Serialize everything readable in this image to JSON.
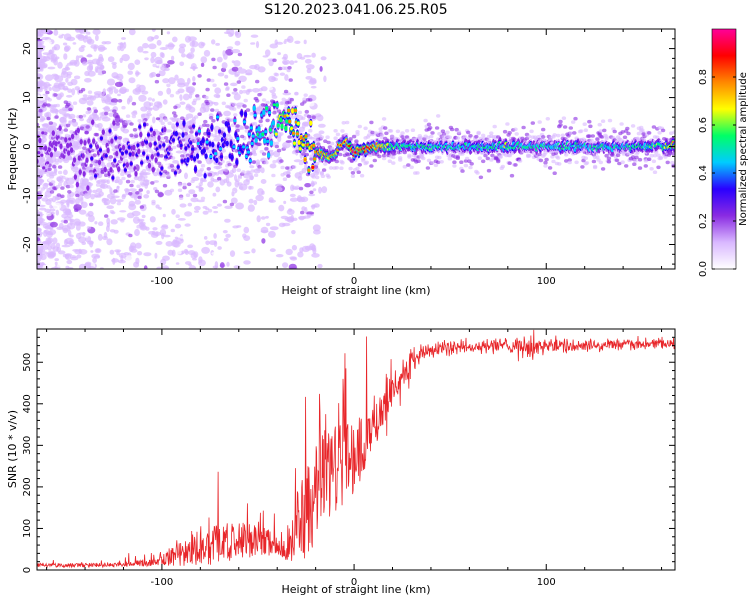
{
  "title": "S120.2023.041.06.25.R05",
  "colors": {
    "axis": "#000000",
    "snr_line": "#e8262a",
    "background": "#ffffff",
    "colormap": [
      "#ffffff",
      "#d9b8ff",
      "#8a2be2",
      "#2a00ff",
      "#00ccff",
      "#00ff66",
      "#ffff00",
      "#ff8800",
      "#ff0000",
      "#ff0099"
    ]
  },
  "chart_data": [
    {
      "type": "heatmap",
      "name": "spectrogram",
      "xlabel": "Height of straight line (km)",
      "ylabel": "Frequency (Hz)",
      "xlim": [
        -165,
        167
      ],
      "ylim": [
        -25,
        24
      ],
      "xticks": [
        -100,
        0,
        100
      ],
      "xtick_labels": [
        "-100",
        "0",
        "100"
      ],
      "yticks": [
        -20,
        -10,
        0,
        10,
        20
      ],
      "ytick_labels": [
        "-20",
        "-10",
        "0",
        "10",
        "20"
      ],
      "grid": false,
      "ridge": {
        "x": [
          -165,
          -140,
          -120,
          -100,
          -80,
          -60,
          -50,
          -40,
          -36,
          -30,
          -25,
          -20,
          -15,
          -10,
          -8,
          -5,
          -2,
          0,
          10,
          20,
          40,
          60,
          80,
          100,
          120,
          140,
          160,
          167
        ],
        "freq": [
          0,
          -2,
          -1,
          0,
          0,
          2,
          3,
          5,
          6,
          3,
          0,
          -1,
          -2,
          -2,
          0,
          1,
          0,
          -1,
          0,
          0,
          0,
          0,
          0,
          0,
          0,
          0,
          0,
          0
        ],
        "amplitude": [
          0.2,
          0.25,
          0.3,
          0.3,
          0.35,
          0.4,
          0.45,
          0.55,
          0.65,
          0.7,
          0.75,
          0.75,
          0.7,
          0.7,
          0.75,
          0.8,
          0.85,
          0.88,
          0.85,
          0.55,
          0.5,
          0.5,
          0.55,
          0.5,
          0.5,
          0.5,
          0.55,
          0.7
        ]
      },
      "colorbar": {
        "label": "Normalized spectral amplitude",
        "range": [
          0,
          1
        ],
        "ticks": [
          0.0,
          0.2,
          0.4,
          0.6,
          0.8
        ],
        "tick_labels": [
          "0.0",
          "0.2",
          "0.4",
          "0.6",
          "0.8"
        ]
      }
    },
    {
      "type": "line",
      "name": "snr",
      "xlabel": "Height of straight line (km)",
      "ylabel": "SNR (10 * v/v)",
      "xlim": [
        -165,
        167
      ],
      "ylim": [
        0,
        580
      ],
      "xticks": [
        -100,
        0,
        100
      ],
      "xtick_labels": [
        "-100",
        "0",
        "100"
      ],
      "yticks": [
        0,
        100,
        200,
        300,
        400,
        500
      ],
      "ytick_labels": [
        "0",
        "100",
        "200",
        "300",
        "400",
        "500"
      ],
      "grid": false,
      "envelope": {
        "x": [
          -165,
          -140,
          -120,
          -105,
          -100,
          -95,
          -90,
          -80,
          -70,
          -60,
          -50,
          -45,
          -40,
          -35,
          -32,
          -30,
          -25,
          -20,
          -15,
          -10,
          -5,
          0,
          5,
          10,
          15,
          20,
          25,
          30,
          35,
          40,
          50,
          60,
          80,
          90,
          100,
          120,
          140,
          167
        ],
        "baseline": [
          12,
          12,
          14,
          20,
          30,
          35,
          40,
          60,
          70,
          75,
          75,
          70,
          60,
          60,
          80,
          120,
          150,
          190,
          220,
          250,
          270,
          280,
          310,
          340,
          390,
          430,
          470,
          500,
          520,
          530,
          535,
          535,
          540,
          540,
          540,
          540,
          545,
          545
        ],
        "fluctuation": [
          6,
          6,
          8,
          12,
          20,
          30,
          40,
          60,
          60,
          55,
          50,
          45,
          40,
          50,
          70,
          90,
          150,
          160,
          150,
          140,
          120,
          110,
          90,
          70,
          50,
          40,
          25,
          18,
          15,
          12,
          10,
          10,
          10,
          20,
          10,
          8,
          8,
          8
        ]
      }
    }
  ]
}
